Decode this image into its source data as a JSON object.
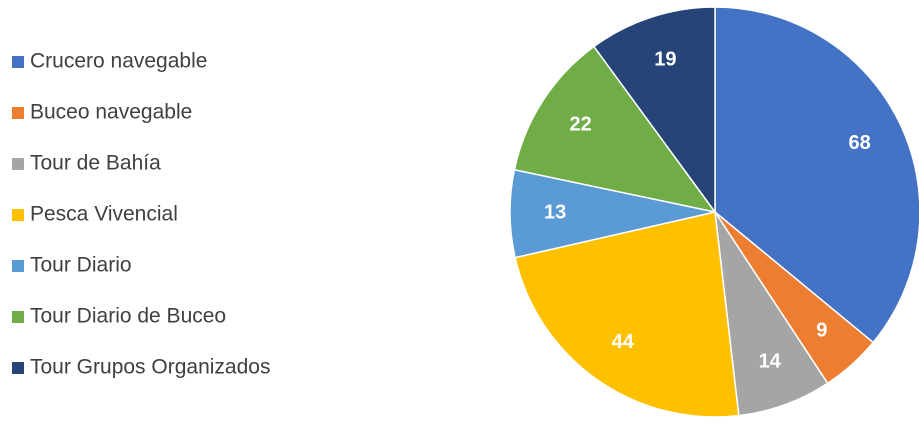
{
  "chart_data": {
    "type": "pie",
    "categories": [
      "Crucero navegable",
      "Buceo navegable",
      "Tour de Bahía",
      "Pesca Vivencial",
      "Tour Diario",
      "Tour Diario de Buceo",
      "Tour Grupos Organizados"
    ],
    "values": [
      68,
      9,
      14,
      44,
      13,
      22,
      19
    ],
    "colors": [
      "#4472c4",
      "#ed7d31",
      "#a5a5a5",
      "#ffc000",
      "#5b9bd5",
      "#70ad47",
      "#264478"
    ],
    "legend": "left"
  }
}
